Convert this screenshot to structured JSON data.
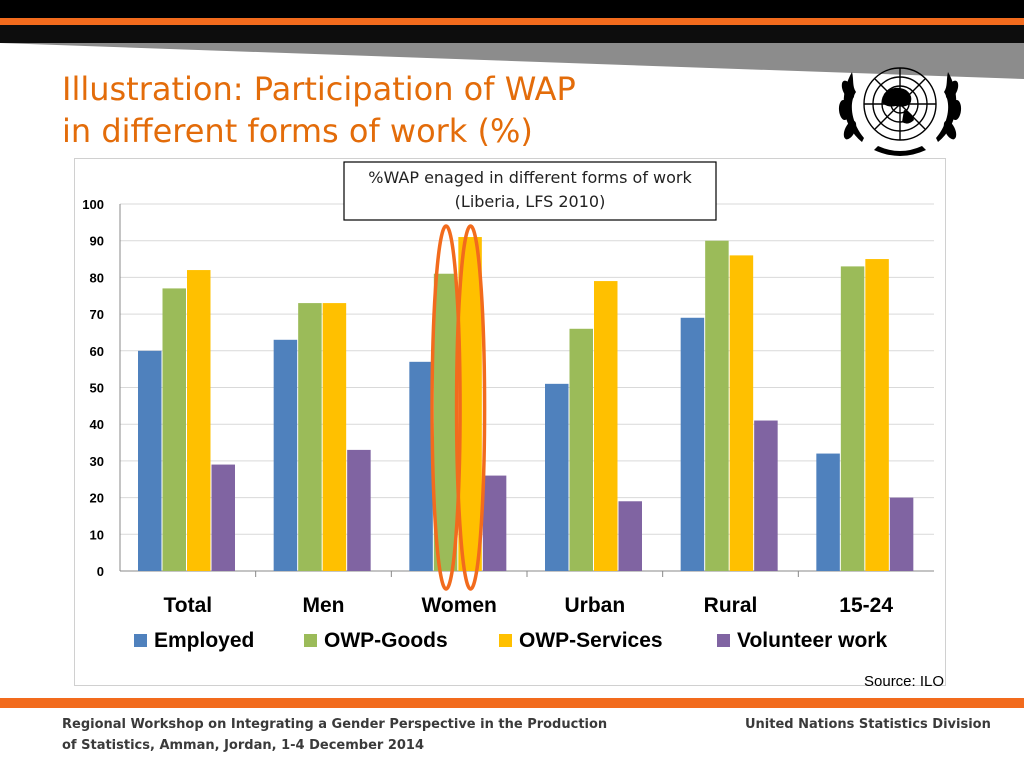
{
  "slide": {
    "title": "Illustration: Participation of WAP\nin different forms of work (%)",
    "source": "Source: ILO",
    "footer_left": "Regional Workshop on Integrating a Gender Perspective in the Production of Statistics, Amman, Jordan, 1-4 December 2014",
    "footer_right": "United Nations Statistics Division",
    "colors": {
      "title": "#E36C0A",
      "accent_bar": "#F26B1D",
      "highlight_ellipse": "#F26B1D"
    },
    "logo": "un-emblem-icon"
  },
  "chart_data": {
    "type": "bar",
    "title": "%WAP enaged in different forms of work",
    "subtitle": "(Liberia, LFS 2010)",
    "categories": [
      "Total",
      "Men",
      "Women",
      "Urban",
      "Rural",
      "15-24"
    ],
    "series": [
      {
        "name": "Employed",
        "color": "#4F81BD",
        "values": [
          60,
          63,
          57,
          51,
          69,
          32
        ]
      },
      {
        "name": "OWP-Goods",
        "color": "#9BBB59",
        "values": [
          77,
          73,
          81,
          66,
          90,
          83
        ]
      },
      {
        "name": "OWP-Services",
        "color": "#FFC000",
        "values": [
          82,
          73,
          91,
          79,
          86,
          85
        ]
      },
      {
        "name": "Volunteer work",
        "color": "#8064A2",
        "values": [
          29,
          33,
          26,
          19,
          41,
          20
        ]
      }
    ],
    "y_ticks": [
      "0",
      "10",
      "20",
      "30",
      "40",
      "50",
      "60",
      "70",
      "80",
      "90",
      "100"
    ],
    "ylim": [
      0,
      100
    ],
    "grid": true,
    "legend_position": "bottom",
    "highlighted_category": "Women"
  }
}
